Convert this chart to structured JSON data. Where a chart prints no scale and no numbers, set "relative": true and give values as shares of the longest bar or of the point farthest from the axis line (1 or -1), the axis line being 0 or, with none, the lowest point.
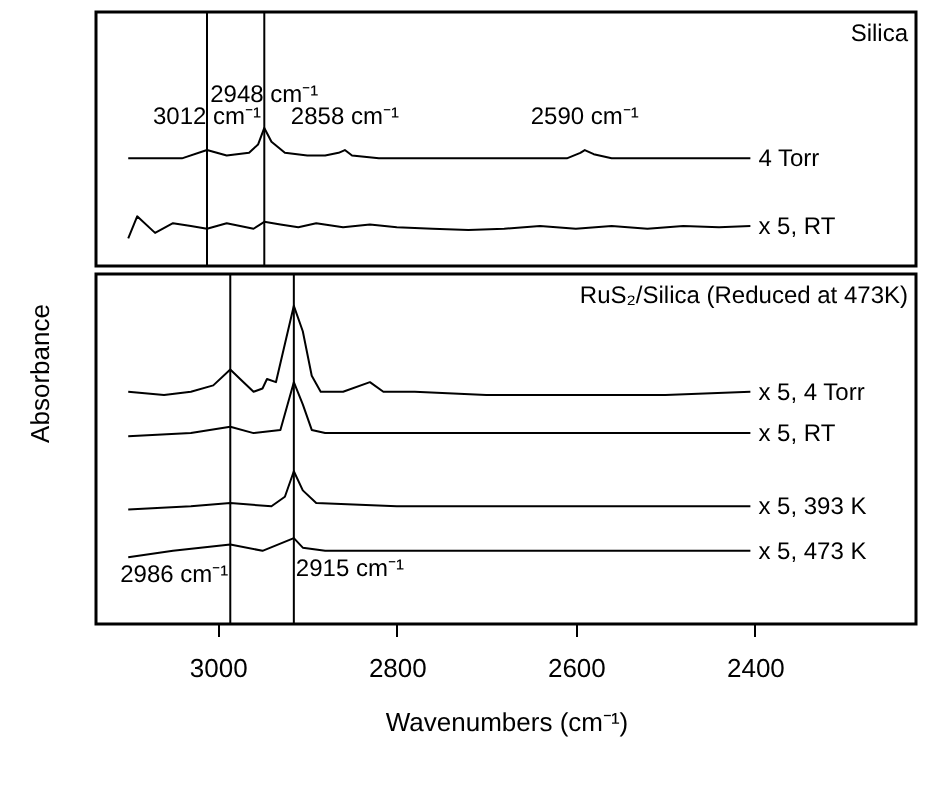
{
  "chart_data": [
    {
      "type": "line",
      "title": "Silica",
      "relative": true,
      "xlim": [
        3136,
        2220
      ],
      "tick_labels": false,
      "series": [
        {
          "name": "4 Torr",
          "color": "#000000",
          "x": [
            3100,
            3040,
            3012,
            2990,
            2965,
            2955,
            2948,
            2940,
            2925,
            2900,
            2880,
            2865,
            2858,
            2850,
            2820,
            2750,
            2650,
            2610,
            2595,
            2590,
            2580,
            2560,
            2500,
            2405
          ],
          "values": [
            0.78,
            0.78,
            0.84,
            0.8,
            0.82,
            0.88,
            1.0,
            0.9,
            0.82,
            0.8,
            0.8,
            0.82,
            0.84,
            0.8,
            0.78,
            0.78,
            0.78,
            0.78,
            0.82,
            0.84,
            0.81,
            0.78,
            0.78,
            0.78
          ]
        },
        {
          "name": "x 5, RT",
          "color": "#000000",
          "x": [
            3100,
            3090,
            3070,
            3050,
            3030,
            3012,
            2990,
            2975,
            2960,
            2948,
            2930,
            2910,
            2890,
            2860,
            2830,
            2800,
            2760,
            2720,
            2680,
            2640,
            2600,
            2560,
            2520,
            2480,
            2440,
            2405
          ],
          "values": [
            0.2,
            0.36,
            0.24,
            0.31,
            0.29,
            0.27,
            0.31,
            0.29,
            0.27,
            0.32,
            0.3,
            0.28,
            0.31,
            0.28,
            0.3,
            0.28,
            0.27,
            0.26,
            0.27,
            0.29,
            0.27,
            0.29,
            0.27,
            0.29,
            0.28,
            0.29
          ]
        }
      ],
      "ref_lines": [
        {
          "axis": "x",
          "value": 3012
        },
        {
          "axis": "x",
          "value": 2948
        }
      ],
      "annotations": [
        {
          "text": "3012 cm⁻¹",
          "x": 3012,
          "y": 0.84
        },
        {
          "text": "2948 cm⁻¹",
          "x": 2948,
          "y": 1.0
        },
        {
          "text": "2858 cm⁻¹",
          "x": 2858,
          "y": 0.84
        },
        {
          "text": "2590 cm⁻¹",
          "x": 2590,
          "y": 0.84
        }
      ]
    },
    {
      "type": "line",
      "title": "RuS₂/Silica (Reduced at 473K)",
      "relative": true,
      "xlim": [
        3136,
        2220
      ],
      "xticks": [
        3000,
        2800,
        2600,
        2400
      ],
      "tick_labels": "x",
      "xlabel": "Wavenumbers (cm⁻¹)",
      "ylabel": "Absorbance",
      "series": [
        {
          "name": "x 5, 4 Torr",
          "color": "#000000",
          "x": [
            3100,
            3060,
            3030,
            3005,
            2986,
            2975,
            2960,
            2950,
            2945,
            2935,
            2925,
            2915,
            2905,
            2895,
            2885,
            2860,
            2830,
            2815,
            2780,
            2700,
            2600,
            2500,
            2405
          ],
          "values": [
            0.73,
            0.72,
            0.73,
            0.75,
            0.8,
            0.77,
            0.73,
            0.74,
            0.77,
            0.76,
            0.88,
            1.0,
            0.92,
            0.78,
            0.73,
            0.73,
            0.76,
            0.73,
            0.73,
            0.72,
            0.72,
            0.72,
            0.73
          ]
        },
        {
          "name": "x 5, RT",
          "color": "#000000",
          "x": [
            3100,
            3030,
            2986,
            2960,
            2930,
            2922,
            2915,
            2905,
            2895,
            2880,
            2700,
            2405
          ],
          "values": [
            0.59,
            0.6,
            0.62,
            0.6,
            0.61,
            0.69,
            0.76,
            0.69,
            0.61,
            0.6,
            0.6,
            0.6
          ]
        },
        {
          "name": "x 5, 393 K",
          "color": "#000000",
          "x": [
            3100,
            3030,
            2986,
            2940,
            2925,
            2915,
            2905,
            2890,
            2800,
            2405
          ],
          "values": [
            0.36,
            0.37,
            0.38,
            0.37,
            0.4,
            0.48,
            0.42,
            0.38,
            0.37,
            0.37
          ]
        },
        {
          "name": "x 5, 473 K",
          "color": "#000000",
          "x": [
            3100,
            3050,
            2986,
            2950,
            2915,
            2905,
            2880,
            2700,
            2405
          ],
          "values": [
            0.21,
            0.23,
            0.25,
            0.23,
            0.27,
            0.24,
            0.23,
            0.23,
            0.23
          ]
        }
      ],
      "ref_lines": [
        {
          "axis": "x",
          "value": 2986
        },
        {
          "axis": "x",
          "value": 2915
        }
      ],
      "annotations": [
        {
          "text": "2986 cm⁻¹",
          "x": 2986,
          "y": 0.25
        },
        {
          "text": "2915 cm⁻¹",
          "x": 2915,
          "y": 0.27
        }
      ]
    }
  ]
}
